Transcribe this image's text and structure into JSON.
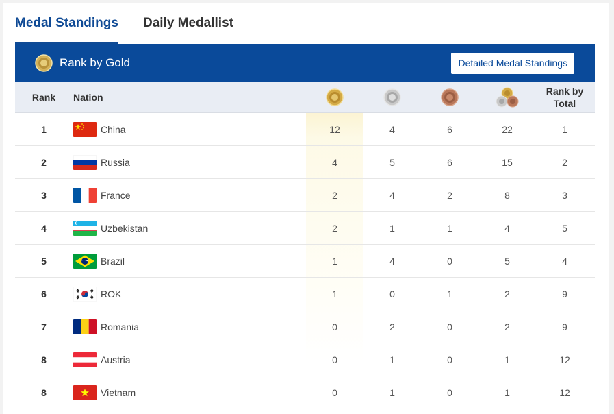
{
  "tabs": [
    {
      "label": "Medal Standings",
      "active": true
    },
    {
      "label": "Daily Medallist",
      "active": false
    }
  ],
  "banner": {
    "title": "Rank by Gold",
    "button_label": "Detailed Medal Standings",
    "color": "#0a4a9a"
  },
  "header": {
    "rank": "Rank",
    "nation": "Nation",
    "gold_icon": "gold-medal-icon",
    "silver_icon": "silver-medal-icon",
    "bronze_icon": "bronze-medal-icon",
    "total_icon": "total-medals-icon",
    "rank_by_total": "Rank by Total"
  },
  "rows": [
    {
      "rank": "1",
      "nation": "China",
      "flag": "china-flag-icon",
      "gold": "12",
      "silver": "4",
      "bronze": "6",
      "total": "22",
      "rank_total": "1"
    },
    {
      "rank": "2",
      "nation": "Russia",
      "flag": "russia-flag-icon",
      "gold": "4",
      "silver": "5",
      "bronze": "6",
      "total": "15",
      "rank_total": "2"
    },
    {
      "rank": "3",
      "nation": "France",
      "flag": "france-flag-icon",
      "gold": "2",
      "silver": "4",
      "bronze": "2",
      "total": "8",
      "rank_total": "3"
    },
    {
      "rank": "4",
      "nation": "Uzbekistan",
      "flag": "uzbekistan-flag-icon",
      "gold": "2",
      "silver": "1",
      "bronze": "1",
      "total": "4",
      "rank_total": "5"
    },
    {
      "rank": "5",
      "nation": "Brazil",
      "flag": "brazil-flag-icon",
      "gold": "1",
      "silver": "4",
      "bronze": "0",
      "total": "5",
      "rank_total": "4"
    },
    {
      "rank": "6",
      "nation": "ROK",
      "flag": "rok-flag-icon",
      "gold": "1",
      "silver": "0",
      "bronze": "1",
      "total": "2",
      "rank_total": "9"
    },
    {
      "rank": "7",
      "nation": "Romania",
      "flag": "romania-flag-icon",
      "gold": "0",
      "silver": "2",
      "bronze": "0",
      "total": "2",
      "rank_total": "9"
    },
    {
      "rank": "8",
      "nation": "Austria",
      "flag": "austria-flag-icon",
      "gold": "0",
      "silver": "1",
      "bronze": "0",
      "total": "1",
      "rank_total": "12"
    },
    {
      "rank": "8",
      "nation": "Vietnam",
      "flag": "vietnam-flag-icon",
      "gold": "0",
      "silver": "1",
      "bronze": "0",
      "total": "1",
      "rank_total": "12"
    }
  ]
}
